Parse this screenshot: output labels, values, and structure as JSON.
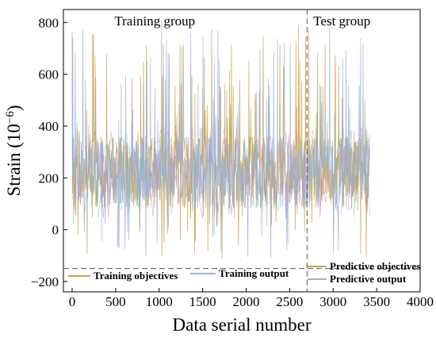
{
  "chart_data": {
    "type": "line",
    "xlabel": "Data serial number",
    "ylabel_main": "Strain (10",
    "ylabel_sup": "−6",
    "ylabel_close": ")",
    "xlim": [
      -100,
      4000
    ],
    "ylim": [
      -240,
      850
    ],
    "xticks": [
      0,
      500,
      1000,
      1500,
      2000,
      2500,
      3000,
      3500,
      4000
    ],
    "yticks": [
      -200,
      0,
      200,
      400,
      600,
      800
    ],
    "split_x": 2700,
    "legend_divider_y": -150,
    "regions": [
      {
        "label": "Training group",
        "x_center": 950
      },
      {
        "label": "Test group",
        "x_center": 3100
      }
    ],
    "series": [
      {
        "name": "Training objectives",
        "color": "#c8a24a",
        "x_start": 0,
        "x_end": 2700,
        "legend_row": 0
      },
      {
        "name": "Training output",
        "color": "#9db1d9",
        "x_start": 0,
        "x_end": 2700,
        "legend_row": 0
      },
      {
        "name": "Predictive objectives",
        "color": "#c8a24a",
        "x_start": 2700,
        "x_end": 3420,
        "legend_row": 1
      },
      {
        "name": "Predictive output",
        "color": "#9db1d9",
        "x_start": 2700,
        "x_end": 3420,
        "legend_row": 1
      }
    ],
    "accent_colors": [
      "#d97fa8",
      "#8fc79a"
    ],
    "signal": {
      "center": 220,
      "core_halfwidth": 140,
      "max": 810,
      "min": -120
    }
  }
}
